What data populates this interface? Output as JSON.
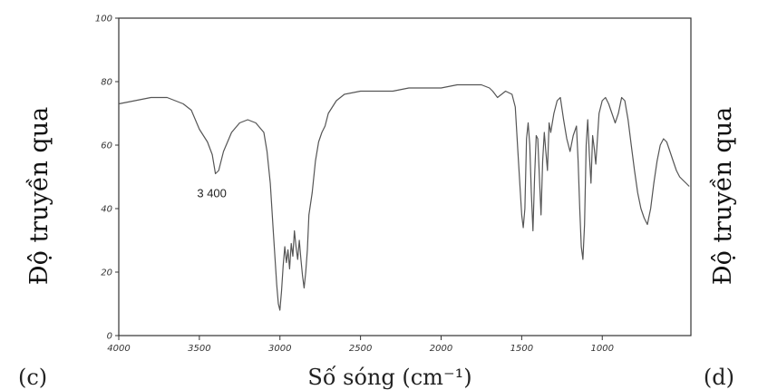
{
  "chart_data": {
    "type": "line",
    "title": "",
    "ylabel_left": "Độ truyền qua",
    "ylabel_right": "Độ truyền qua",
    "xlabel": "Số sóng (cm⁻¹)",
    "panel_left": "(c)",
    "panel_right": "(d)",
    "xlim": [
      4000,
      450
    ],
    "ylim": [
      0,
      100
    ],
    "x_ticks": [
      4000,
      3500,
      3000,
      2500,
      2000,
      1500,
      1000
    ],
    "x_tick_labels": [
      "4000",
      "3500",
      "3000",
      "2500",
      "2000",
      "1500",
      "1000"
    ],
    "y_ticks": [
      0,
      20,
      40,
      60,
      80,
      100
    ],
    "y_tick_labels": [
      "0",
      "20",
      "40",
      "60",
      "80",
      "100"
    ],
    "annotations": [
      {
        "text": "3 400",
        "x": 3400,
        "y": 51
      }
    ],
    "series": [
      {
        "x": [
          4000,
          3900,
          3800,
          3700,
          3600,
          3550,
          3500,
          3450,
          3420,
          3400,
          3380,
          3350,
          3300,
          3250,
          3200,
          3150,
          3100,
          3080,
          3060,
          3040,
          3020,
          3010,
          3000,
          2990,
          2980,
          2970,
          2960,
          2950,
          2940,
          2930,
          2920,
          2910,
          2900,
          2890,
          2880,
          2870,
          2860,
          2850,
          2840,
          2830,
          2820,
          2800,
          2780,
          2760,
          2740,
          2720,
          2700,
          2650,
          2600,
          2500,
          2400,
          2300,
          2200,
          2100,
          2000,
          1900,
          1800,
          1750,
          1700,
          1680,
          1650,
          1600,
          1560,
          1540,
          1520,
          1500,
          1490,
          1480,
          1470,
          1460,
          1450,
          1440,
          1430,
          1420,
          1410,
          1400,
          1390,
          1380,
          1370,
          1360,
          1350,
          1340,
          1330,
          1320,
          1300,
          1280,
          1260,
          1240,
          1220,
          1200,
          1180,
          1160,
          1150,
          1140,
          1130,
          1120,
          1110,
          1100,
          1090,
          1080,
          1070,
          1060,
          1050,
          1040,
          1020,
          1000,
          980,
          960,
          940,
          920,
          900,
          880,
          860,
          840,
          820,
          800,
          780,
          760,
          740,
          720,
          700,
          680,
          660,
          640,
          620,
          600,
          580,
          560,
          540,
          520,
          500,
          480,
          460
        ],
        "y": [
          73,
          74,
          75,
          75,
          73,
          71,
          65,
          61,
          57,
          51,
          52,
          58,
          64,
          67,
          68,
          67,
          64,
          58,
          48,
          32,
          16,
          10,
          8,
          14,
          22,
          28,
          23,
          27,
          21,
          29,
          25,
          33,
          28,
          24,
          30,
          24,
          19,
          15,
          20,
          27,
          38,
          45,
          55,
          61,
          64,
          66,
          70,
          74,
          76,
          77,
          77,
          77,
          78,
          78,
          78,
          79,
          79,
          79,
          78,
          77,
          75,
          77,
          76,
          72,
          55,
          38,
          34,
          40,
          62,
          67,
          60,
          45,
          33,
          50,
          63,
          62,
          50,
          38,
          55,
          64,
          58,
          52,
          67,
          64,
          70,
          74,
          75,
          68,
          62,
          58,
          63,
          66,
          55,
          40,
          28,
          24,
          35,
          60,
          68,
          57,
          48,
          63,
          59,
          54,
          70,
          74,
          75,
          73,
          70,
          67,
          70,
          75,
          74,
          68,
          60,
          52,
          45,
          40,
          37,
          35,
          40,
          48,
          55,
          60,
          62,
          61,
          58,
          55,
          52,
          50,
          49,
          48,
          47
        ]
      }
    ]
  }
}
